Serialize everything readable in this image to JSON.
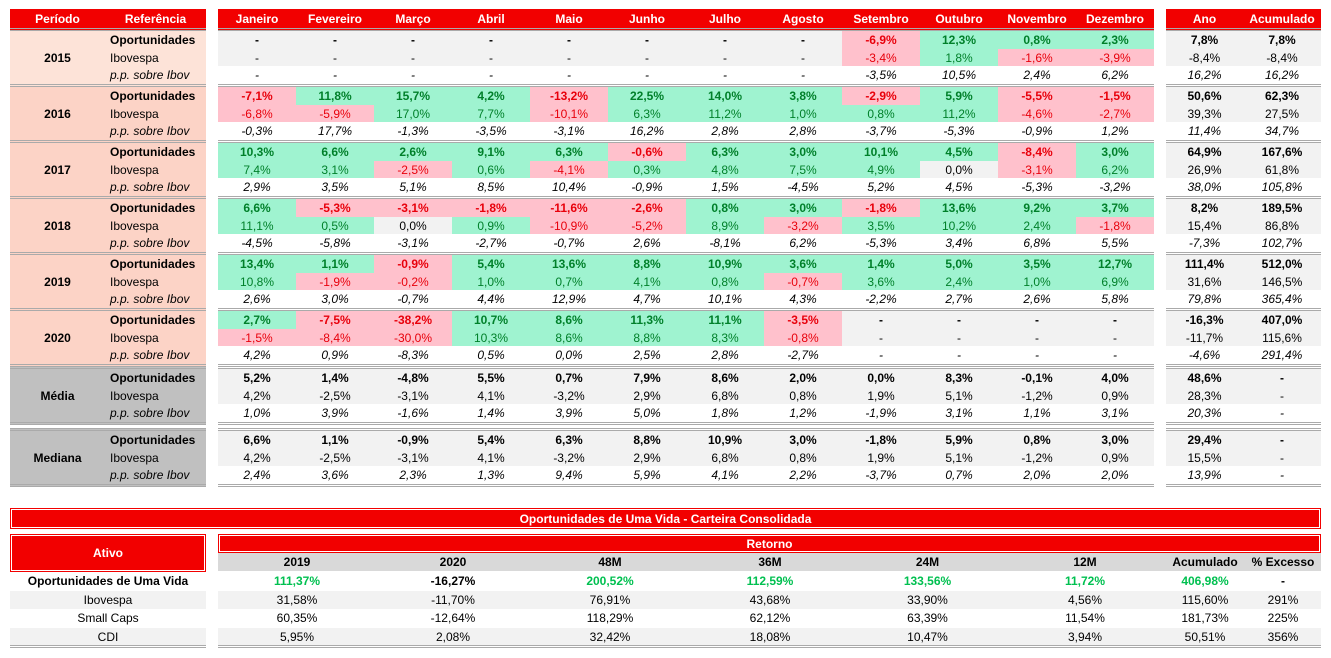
{
  "header": {
    "period": "Período",
    "reference": "Referência",
    "months": [
      "Janeiro",
      "Fevereiro",
      "Março",
      "Abril",
      "Maio",
      "Junho",
      "Julho",
      "Agosto",
      "Setembro",
      "Outubro",
      "Novembro",
      "Dezembro"
    ],
    "year": "Ano",
    "accumulated": "Acumulado"
  },
  "groups": [
    {
      "period": "2015",
      "kind": "year",
      "rows": [
        {
          "ref": "Oportunidades",
          "months": [
            "-",
            "-",
            "-",
            "-",
            "-",
            "-",
            "-",
            "-",
            "-6,9%",
            "12,3%",
            "0,8%",
            "2,3%"
          ],
          "year": "7,8%",
          "acum": "7,8%"
        },
        {
          "ref": "Ibovespa",
          "months": [
            "-",
            "-",
            "-",
            "-",
            "-",
            "-",
            "-",
            "-",
            "-3,4%",
            "1,8%",
            "-1,6%",
            "-3,9%"
          ],
          "year": "-8,4%",
          "acum": "-8,4%"
        },
        {
          "ref": "p.p. sobre Ibov",
          "months": [
            "-",
            "-",
            "-",
            "-",
            "-",
            "-",
            "-",
            "-",
            "-3,5%",
            "10,5%",
            "2,4%",
            "6,2%"
          ],
          "year": "16,2%",
          "acum": "16,2%"
        }
      ]
    },
    {
      "period": "2016",
      "kind": "year",
      "rows": [
        {
          "ref": "Oportunidades",
          "months": [
            "-7,1%",
            "11,8%",
            "15,7%",
            "4,2%",
            "-13,2%",
            "22,5%",
            "14,0%",
            "3,8%",
            "-2,9%",
            "5,9%",
            "-5,5%",
            "-1,5%"
          ],
          "year": "50,6%",
          "acum": "62,3%"
        },
        {
          "ref": "Ibovespa",
          "months": [
            "-6,8%",
            "-5,9%",
            "17,0%",
            "7,7%",
            "-10,1%",
            "6,3%",
            "11,2%",
            "1,0%",
            "0,8%",
            "11,2%",
            "-4,6%",
            "-2,7%"
          ],
          "year": "39,3%",
          "acum": "27,5%"
        },
        {
          "ref": "p.p. sobre Ibov",
          "months": [
            "-0,3%",
            "17,7%",
            "-1,3%",
            "-3,5%",
            "-3,1%",
            "16,2%",
            "2,8%",
            "2,8%",
            "-3,7%",
            "-5,3%",
            "-0,9%",
            "1,2%"
          ],
          "year": "11,4%",
          "acum": "34,7%"
        }
      ]
    },
    {
      "period": "2017",
      "kind": "year",
      "rows": [
        {
          "ref": "Oportunidades",
          "months": [
            "10,3%",
            "6,6%",
            "2,6%",
            "9,1%",
            "6,3%",
            "-0,6%",
            "6,3%",
            "3,0%",
            "10,1%",
            "4,5%",
            "-8,4%",
            "3,0%"
          ],
          "year": "64,9%",
          "acum": "167,6%"
        },
        {
          "ref": "Ibovespa",
          "months": [
            "7,4%",
            "3,1%",
            "-2,5%",
            "0,6%",
            "-4,1%",
            "0,3%",
            "4,8%",
            "7,5%",
            "4,9%",
            "0,0%",
            "-3,1%",
            "6,2%"
          ],
          "year": "26,9%",
          "acum": "61,8%"
        },
        {
          "ref": "p.p. sobre Ibov",
          "months": [
            "2,9%",
            "3,5%",
            "5,1%",
            "8,5%",
            "10,4%",
            "-0,9%",
            "1,5%",
            "-4,5%",
            "5,2%",
            "4,5%",
            "-5,3%",
            "-3,2%"
          ],
          "year": "38,0%",
          "acum": "105,8%"
        }
      ]
    },
    {
      "period": "2018",
      "kind": "year",
      "rows": [
        {
          "ref": "Oportunidades",
          "months": [
            "6,6%",
            "-5,3%",
            "-3,1%",
            "-1,8%",
            "-11,6%",
            "-2,6%",
            "0,8%",
            "3,0%",
            "-1,8%",
            "13,6%",
            "9,2%",
            "3,7%"
          ],
          "year": "8,2%",
          "acum": "189,5%"
        },
        {
          "ref": "Ibovespa",
          "months": [
            "11,1%",
            "0,5%",
            "0,0%",
            "0,9%",
            "-10,9%",
            "-5,2%",
            "8,9%",
            "-3,2%",
            "3,5%",
            "10,2%",
            "2,4%",
            "-1,8%"
          ],
          "year": "15,4%",
          "acum": "86,8%"
        },
        {
          "ref": "p.p. sobre Ibov",
          "months": [
            "-4,5%",
            "-5,8%",
            "-3,1%",
            "-2,7%",
            "-0,7%",
            "2,6%",
            "-8,1%",
            "6,2%",
            "-5,3%",
            "3,4%",
            "6,8%",
            "5,5%"
          ],
          "year": "-7,3%",
          "acum": "102,7%"
        }
      ]
    },
    {
      "period": "2019",
      "kind": "year",
      "rows": [
        {
          "ref": "Oportunidades",
          "months": [
            "13,4%",
            "1,1%",
            "-0,9%",
            "5,4%",
            "13,6%",
            "8,8%",
            "10,9%",
            "3,6%",
            "1,4%",
            "5,0%",
            "3,5%",
            "12,7%"
          ],
          "year": "111,4%",
          "acum": "512,0%"
        },
        {
          "ref": "Ibovespa",
          "months": [
            "10,8%",
            "-1,9%",
            "-0,2%",
            "1,0%",
            "0,7%",
            "4,1%",
            "0,8%",
            "-0,7%",
            "3,6%",
            "2,4%",
            "1,0%",
            "6,9%"
          ],
          "year": "31,6%",
          "acum": "146,5%"
        },
        {
          "ref": "p.p. sobre Ibov",
          "months": [
            "2,6%",
            "3,0%",
            "-0,7%",
            "4,4%",
            "12,9%",
            "4,7%",
            "10,1%",
            "4,3%",
            "-2,2%",
            "2,7%",
            "2,6%",
            "5,8%"
          ],
          "year": "79,8%",
          "acum": "365,4%"
        }
      ]
    },
    {
      "period": "2020",
      "kind": "year",
      "rows": [
        {
          "ref": "Oportunidades",
          "months": [
            "2,7%",
            "-7,5%",
            "-38,2%",
            "10,7%",
            "8,6%",
            "11,3%",
            "11,1%",
            "-3,5%",
            "-",
            "-",
            "-",
            "-"
          ],
          "year": "-16,3%",
          "acum": "407,0%"
        },
        {
          "ref": "Ibovespa",
          "months": [
            "-1,5%",
            "-8,4%",
            "-30,0%",
            "10,3%",
            "8,6%",
            "8,8%",
            "8,3%",
            "-0,8%",
            "-",
            "-",
            "-",
            "-"
          ],
          "year": "-11,7%",
          "acum": "115,6%"
        },
        {
          "ref": "p.p. sobre Ibov",
          "months": [
            "4,2%",
            "0,9%",
            "-8,3%",
            "0,5%",
            "0,0%",
            "2,5%",
            "2,8%",
            "-2,7%",
            "-",
            "-",
            "-",
            "-"
          ],
          "year": "-4,6%",
          "acum": "291,4%"
        }
      ]
    },
    {
      "period": "Média",
      "kind": "stat",
      "rows": [
        {
          "ref": "Oportunidades",
          "months": [
            "5,2%",
            "1,4%",
            "-4,8%",
            "5,5%",
            "0,7%",
            "7,9%",
            "8,6%",
            "2,0%",
            "0,0%",
            "8,3%",
            "-0,1%",
            "4,0%"
          ],
          "year": "48,6%",
          "acum": "-"
        },
        {
          "ref": "Ibovespa",
          "months": [
            "4,2%",
            "-2,5%",
            "-3,1%",
            "4,1%",
            "-3,2%",
            "2,9%",
            "6,8%",
            "0,8%",
            "1,9%",
            "5,1%",
            "-1,2%",
            "0,9%"
          ],
          "year": "28,3%",
          "acum": "-"
        },
        {
          "ref": "p.p. sobre Ibov",
          "months": [
            "1,0%",
            "3,9%",
            "-1,6%",
            "1,4%",
            "3,9%",
            "5,0%",
            "1,8%",
            "1,2%",
            "-1,9%",
            "3,1%",
            "1,1%",
            "3,1%"
          ],
          "year": "20,3%",
          "acum": "-"
        }
      ]
    },
    {
      "period": "Mediana",
      "kind": "stat",
      "rows": [
        {
          "ref": "Oportunidades",
          "months": [
            "6,6%",
            "1,1%",
            "-0,9%",
            "5,4%",
            "6,3%",
            "8,8%",
            "10,9%",
            "3,0%",
            "-1,8%",
            "5,9%",
            "0,8%",
            "3,0%"
          ],
          "year": "29,4%",
          "acum": "-"
        },
        {
          "ref": "Ibovespa",
          "months": [
            "4,2%",
            "-2,5%",
            "-3,1%",
            "4,1%",
            "-3,2%",
            "2,9%",
            "6,8%",
            "0,8%",
            "1,9%",
            "5,1%",
            "-1,2%",
            "0,9%"
          ],
          "year": "15,5%",
          "acum": "-"
        },
        {
          "ref": "p.p. sobre Ibov",
          "months": [
            "2,4%",
            "3,6%",
            "2,3%",
            "1,3%",
            "9,4%",
            "5,9%",
            "4,1%",
            "2,2%",
            "-3,7%",
            "0,7%",
            "2,0%",
            "2,0%"
          ],
          "year": "13,9%",
          "acum": "-"
        }
      ]
    }
  ],
  "summary": {
    "title": "Oportunidades de Uma Vida - Carteira Consolidada",
    "asset_header": "Ativo",
    "return_header": "Retorno",
    "columns": [
      "2019",
      "2020",
      "48M",
      "36M",
      "24M",
      "12M",
      "Acumulado",
      "% Excesso"
    ],
    "rows": [
      {
        "asset": "Oportunidades de Uma Vida",
        "values": [
          "111,37%",
          "-16,27%",
          "200,52%",
          "112,59%",
          "133,56%",
          "11,72%",
          "406,98%",
          "-"
        ]
      },
      {
        "asset": "Ibovespa",
        "values": [
          "31,58%",
          "-11,70%",
          "76,91%",
          "43,68%",
          "33,90%",
          "4,56%",
          "115,60%",
          "291%"
        ]
      },
      {
        "asset": "Small Caps",
        "values": [
          "60,35%",
          "-12,64%",
          "118,29%",
          "62,12%",
          "63,39%",
          "11,54%",
          "181,73%",
          "225%"
        ]
      },
      {
        "asset": "CDI",
        "values": [
          "5,95%",
          "2,08%",
          "32,42%",
          "18,08%",
          "10,47%",
          "3,94%",
          "50,51%",
          "356%"
        ]
      }
    ]
  },
  "colors": {
    "red": "#f20000",
    "green_bg": "#9ff3d0",
    "red_bg": "#ffc1cc",
    "green_text": "#00802a",
    "red_text": "#e8000b"
  }
}
